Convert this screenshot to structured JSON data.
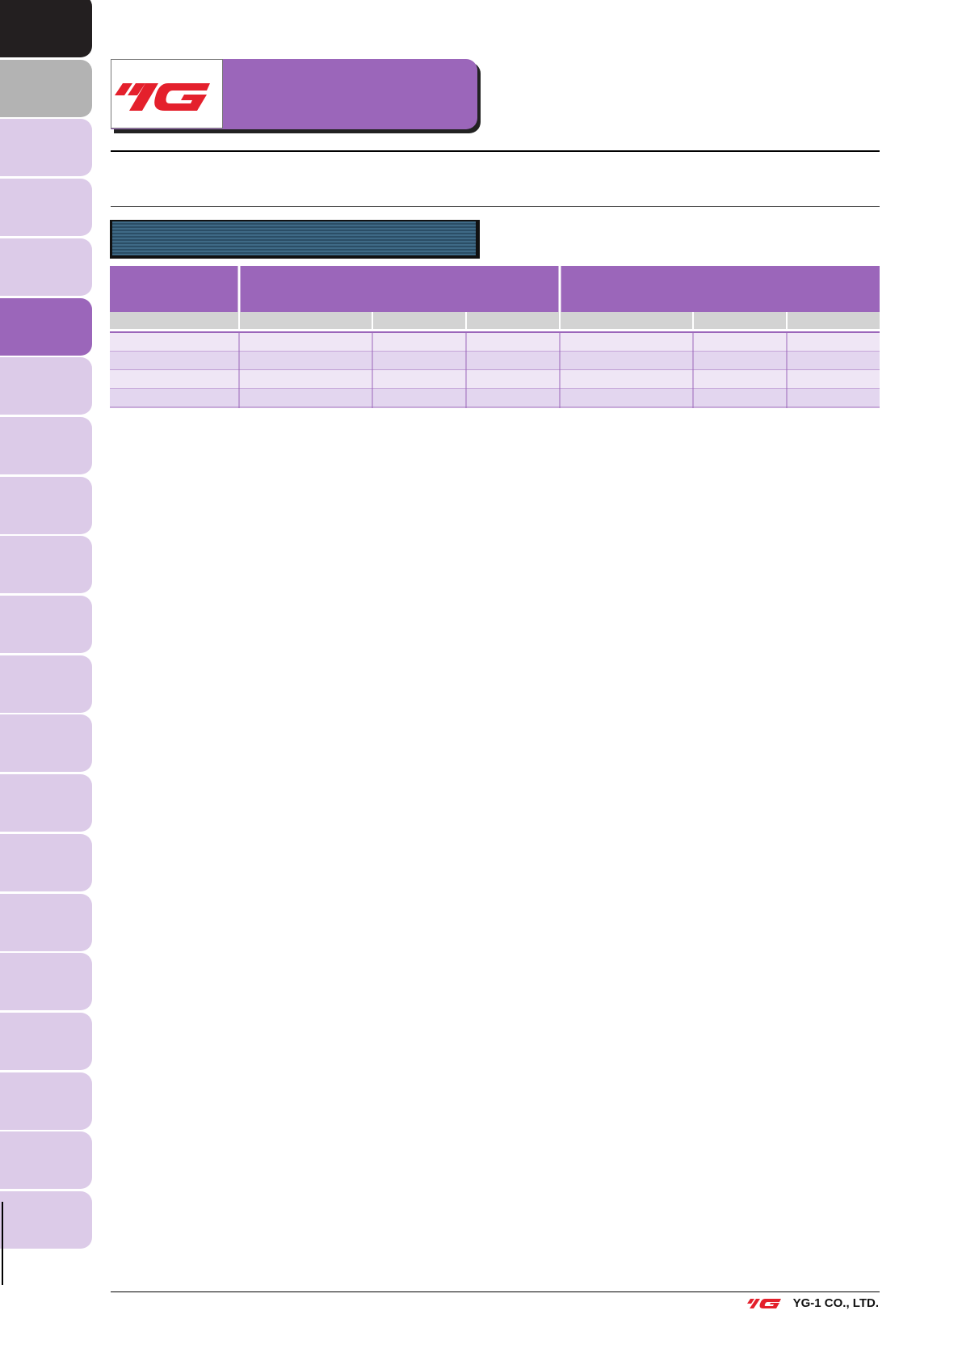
{
  "footer": {
    "company": "YG-1 CO., LTD."
  }
}
